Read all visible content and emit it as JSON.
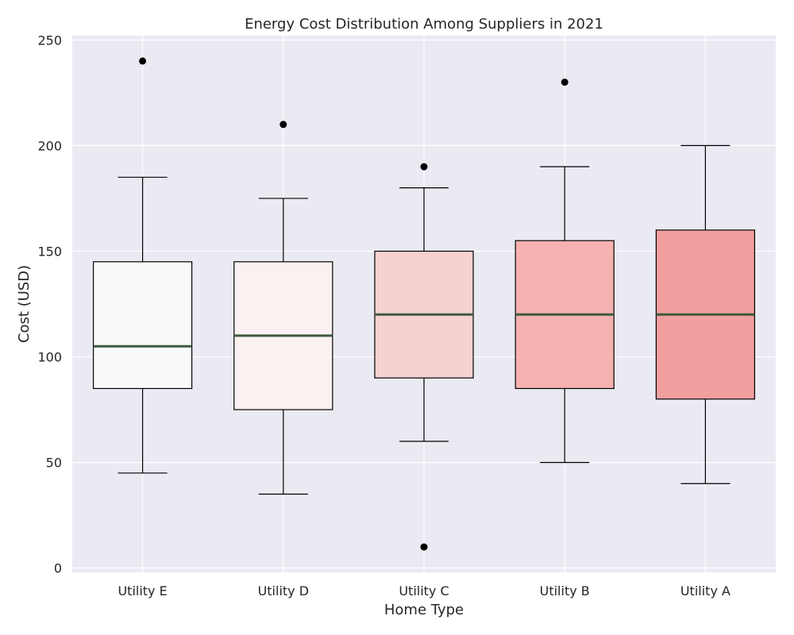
{
  "chart_data": {
    "type": "box",
    "title": "Energy Cost Distribution Among Suppliers in 2021",
    "xlabel": "Home Type",
    "ylabel": "Cost (USD)",
    "ylim": [
      -2,
      252
    ],
    "yticks": [
      0,
      50,
      100,
      150,
      200,
      250
    ],
    "grid": true,
    "categories": [
      "Utility E",
      "Utility D",
      "Utility C",
      "Utility B",
      "Utility A"
    ],
    "boxes": [
      {
        "min": 45,
        "q1": 85,
        "median": 105,
        "q3": 145,
        "max": 185,
        "outliers": [
          240
        ],
        "color": "#fafafa"
      },
      {
        "min": 35,
        "q1": 75,
        "median": 110,
        "q3": 145,
        "max": 175,
        "outliers": [
          210
        ],
        "color": "#fcf1f1"
      },
      {
        "min": 60,
        "q1": 90,
        "median": 120,
        "q3": 150,
        "max": 180,
        "outliers": [
          10,
          190
        ],
        "color": "#f7d1d2"
      },
      {
        "min": 50,
        "q1": 85,
        "median": 120,
        "q3": 155,
        "max": 190,
        "outliers": [
          230
        ],
        "color": "#f6b1b1"
      },
      {
        "min": 40,
        "q1": 80,
        "median": 120,
        "q3": 160,
        "max": 200,
        "outliers": [],
        "color": "#f29f9f"
      }
    ],
    "colors": {
      "plot_background": "#eaeaf2",
      "grid": "#ffffff",
      "median": "#3d5a3d",
      "edge": "#000000",
      "outlier": "#000000"
    }
  }
}
